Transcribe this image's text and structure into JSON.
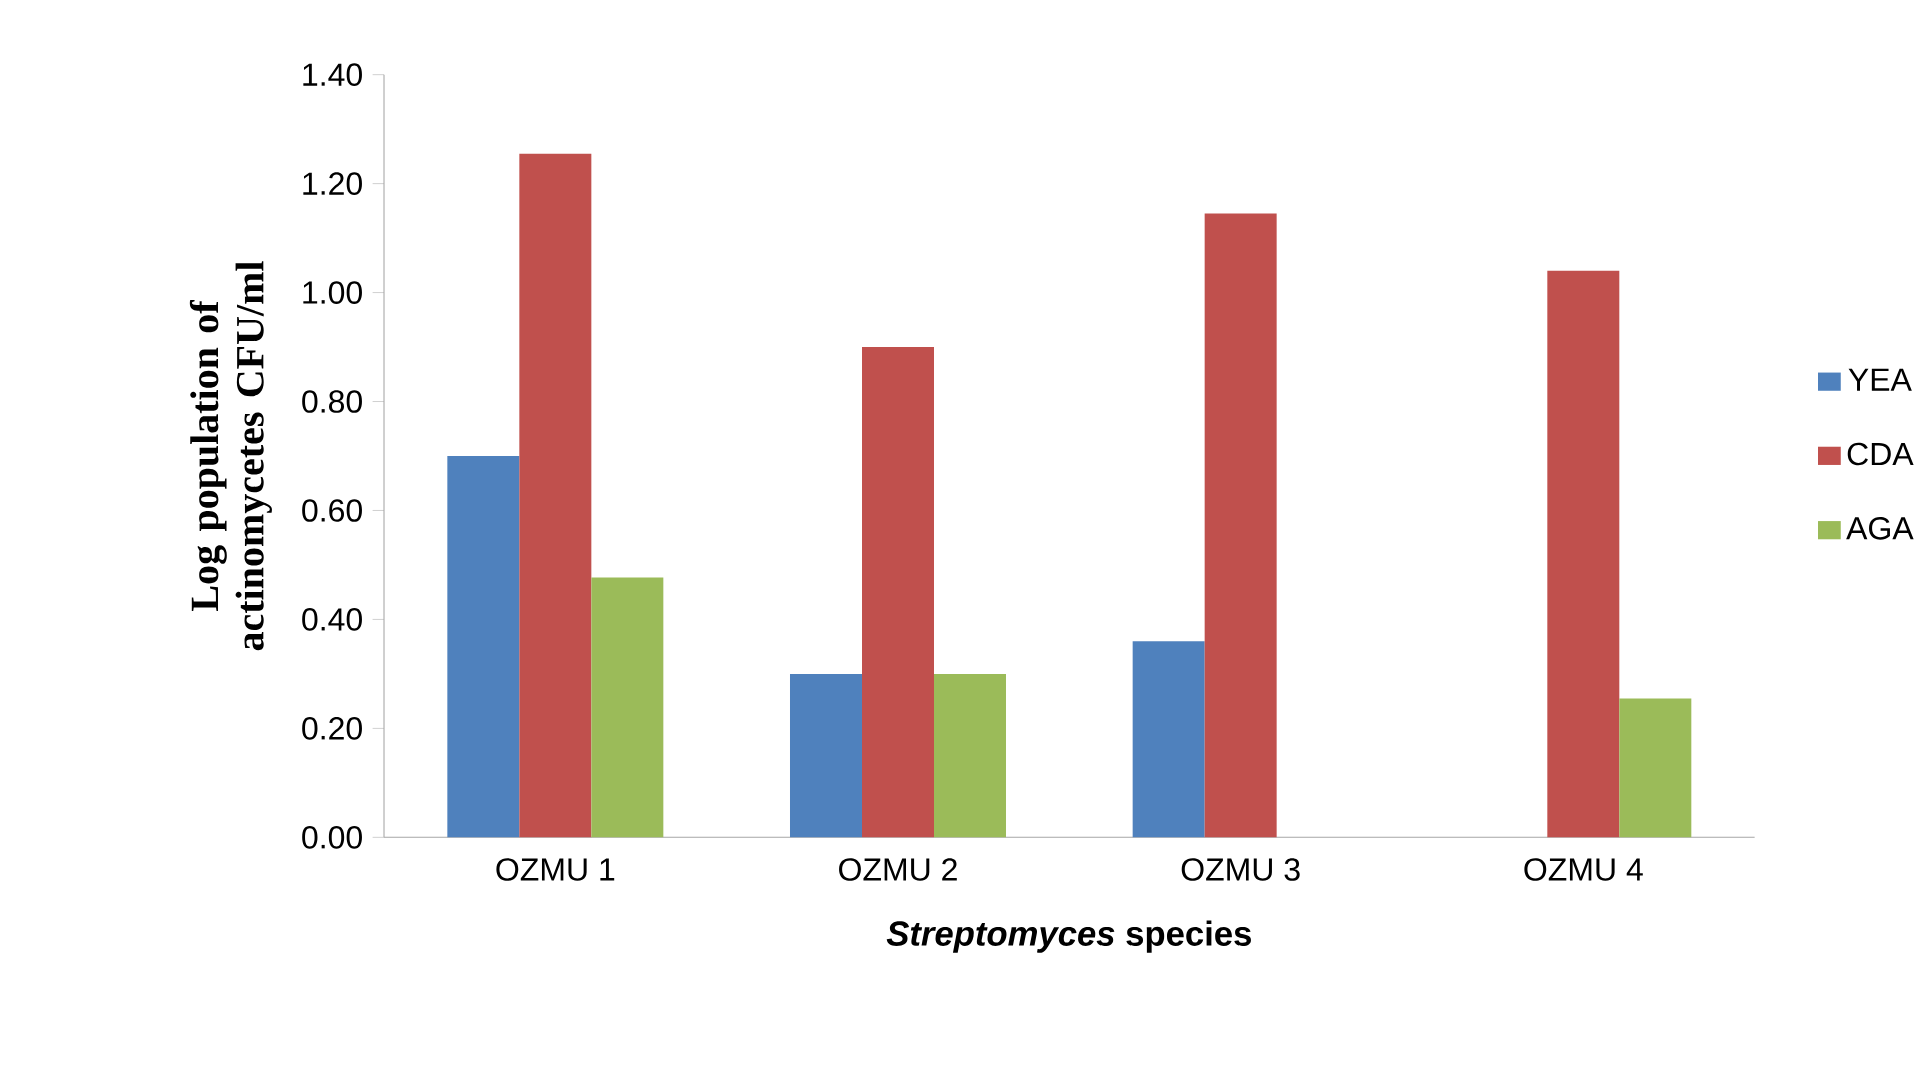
{
  "chart_data": {
    "type": "bar",
    "xlabel": "*Streptomyces* species",
    "ylabel": "Log population of actinomycetes CFU/ml",
    "categories": [
      "OZMU 1",
      "OZMU 2",
      "OZMU 3",
      "OZMU 4"
    ],
    "series": [
      {
        "name": "YEA",
        "color": "#4f81bd",
        "values": [
          0.7,
          0.3,
          0.36,
          0
        ]
      },
      {
        "name": "CDA",
        "color": "#c0504d",
        "values": [
          1.255,
          0.9,
          1.145,
          1.04
        ]
      },
      {
        "name": "AGA",
        "color": "#9bbb59",
        "values": [
          0.477,
          0.3,
          0,
          0.255
        ]
      }
    ],
    "ylim": [
      0,
      1.4
    ],
    "yticks": [
      {
        "value": 0,
        "label": "0.00"
      },
      {
        "value": 0.2,
        "label": "0.20"
      },
      {
        "value": 0.4,
        "label": "0.40"
      },
      {
        "value": 0.6,
        "label": "0.60"
      },
      {
        "value": 0.8,
        "label": "0.80"
      },
      {
        "value": 1.0,
        "label": "1.00"
      },
      {
        "value": 1.2,
        "label": "1.20"
      },
      {
        "value": 1.4,
        "label": "1.40"
      }
    ],
    "legend": "right",
    "grid": false
  }
}
